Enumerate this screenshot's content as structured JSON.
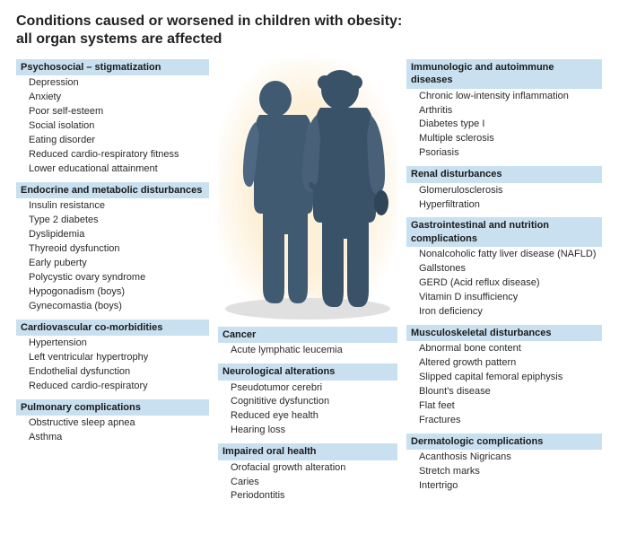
{
  "title_line1": "Conditions caused or worsened in children with obesity:",
  "title_line2": "all organ systems are affected",
  "colors": {
    "header_bg": "#c8e0f0",
    "text": "#2a2a2a",
    "illustration_bg_inner": "#fdf0d8",
    "silhouette": "#405a72",
    "silhouette_light": "#6b85a0",
    "ground": "#dfe0df"
  },
  "left": [
    {
      "head": "Psychosocial – stigmatization",
      "items": [
        "Depression",
        "Anxiety",
        "Poor self-esteem",
        "Social isolation",
        "Eating disorder",
        "Reduced cardio-respiratory fitness",
        "Lower educational attainment"
      ]
    },
    {
      "head": "Endocrine and metabolic disturbances",
      "items": [
        "Insulin resistance",
        "Type 2 diabetes",
        "Dyslipidemia",
        "Thyreoid dysfunction",
        "Early puberty",
        "Polycystic ovary syndrome",
        "Hypogonadism (boys)",
        "Gynecomastia (boys)"
      ]
    },
    {
      "head": "Cardiovascular co-morbidities",
      "items": [
        "Hypertension",
        "Left ventricular hypertrophy",
        "Endothelial dysfunction",
        "Reduced cardio-respiratory"
      ]
    },
    {
      "head": "Pulmonary complications",
      "items": [
        "Obstructive sleep apnea",
        "Asthma"
      ]
    }
  ],
  "mid": [
    {
      "head": "Cancer",
      "items": [
        "Acute lymphatic leucemia"
      ]
    },
    {
      "head": "Neurological alterations",
      "items": [
        "Pseudotumor cerebri",
        "Cognititive dysfunction",
        "Reduced eye health",
        "Hearing loss"
      ]
    },
    {
      "head": "Impaired oral health",
      "items": [
        "Orofacial growth alteration",
        "Caries",
        "Periodontitis"
      ]
    }
  ],
  "right": [
    {
      "head": "Immunologic and autoimmune diseases",
      "items": [
        "Chronic low-intensity inflammation",
        "Arthritis",
        "Diabetes type I",
        "Multiple sclerosis",
        "Psoriasis"
      ]
    },
    {
      "head": "Renal disturbances",
      "items": [
        "Glomerulosclerosis",
        "Hyperfiltration"
      ]
    },
    {
      "head": "Gastrointestinal and nutrition complications",
      "items": [
        "Nonalcoholic fatty liver disease (NAFLD)",
        "Gallstones",
        "GERD (Acid reflux disease)",
        "Vitamin D insufficiency",
        "Iron deficiency"
      ]
    },
    {
      "head": "Musculoskeletal disturbances",
      "items": [
        "Abnormal bone content",
        "Altered growth pattern",
        "Slipped capital femoral epiphysis",
        "Blount's disease",
        "Flat feet",
        "Fractures"
      ]
    },
    {
      "head": "Dermatologic complications",
      "items": [
        "Acanthosis Nigricans",
        "Stretch marks",
        "Intertrigo"
      ]
    }
  ]
}
